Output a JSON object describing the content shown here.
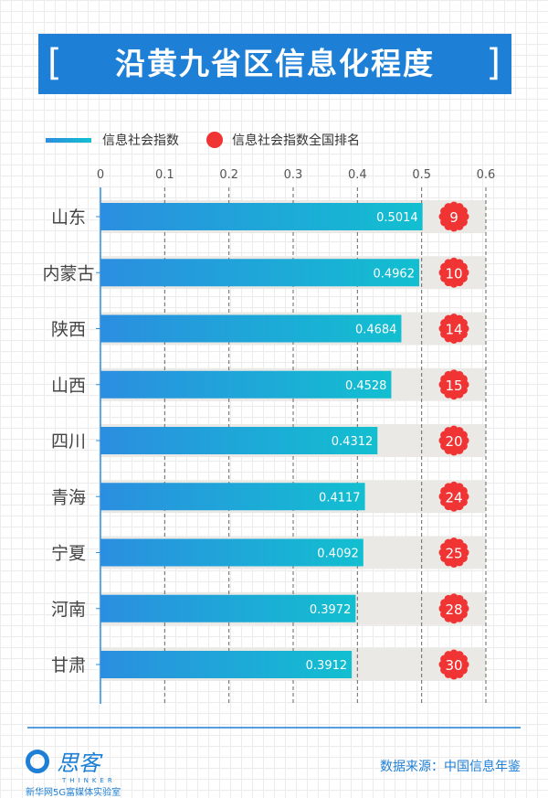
{
  "title": "沿黄九省区信息化程度",
  "legend": {
    "index": "信息社会指数",
    "rank": "信息社会指数全国排名"
  },
  "colors": {
    "bar_start": "#2b8ee0",
    "bar_end": "#12bfd0",
    "rank": "#f03434",
    "title_bg": "#1d7fd6",
    "band": "#ebe9e6"
  },
  "chart_data": {
    "type": "bar",
    "orientation": "horizontal",
    "categories": [
      "山东",
      "内蒙古",
      "陕西",
      "山西",
      "四川",
      "青海",
      "宁夏",
      "河南",
      "甘肃"
    ],
    "series": [
      {
        "name": "信息社会指数",
        "values": [
          0.5014,
          0.4962,
          0.4684,
          0.4528,
          0.4312,
          0.4117,
          0.4092,
          0.3972,
          0.3912
        ]
      },
      {
        "name": "信息社会指数全国排名",
        "values": [
          9,
          10,
          14,
          15,
          20,
          24,
          25,
          28,
          30
        ]
      }
    ],
    "xlim": [
      0,
      0.6
    ],
    "xticks": [
      "0",
      "0.1",
      "0.2",
      "0.3",
      "0.4",
      "0.5",
      "0.6"
    ],
    "grid": "vertical dashed",
    "legend": "top-left"
  },
  "footer": {
    "source": "数据来源：中国信息年鉴",
    "logo_text": "思客",
    "logo_sub": "THINKER",
    "lab": "新华网5G富媒体实验室"
  }
}
